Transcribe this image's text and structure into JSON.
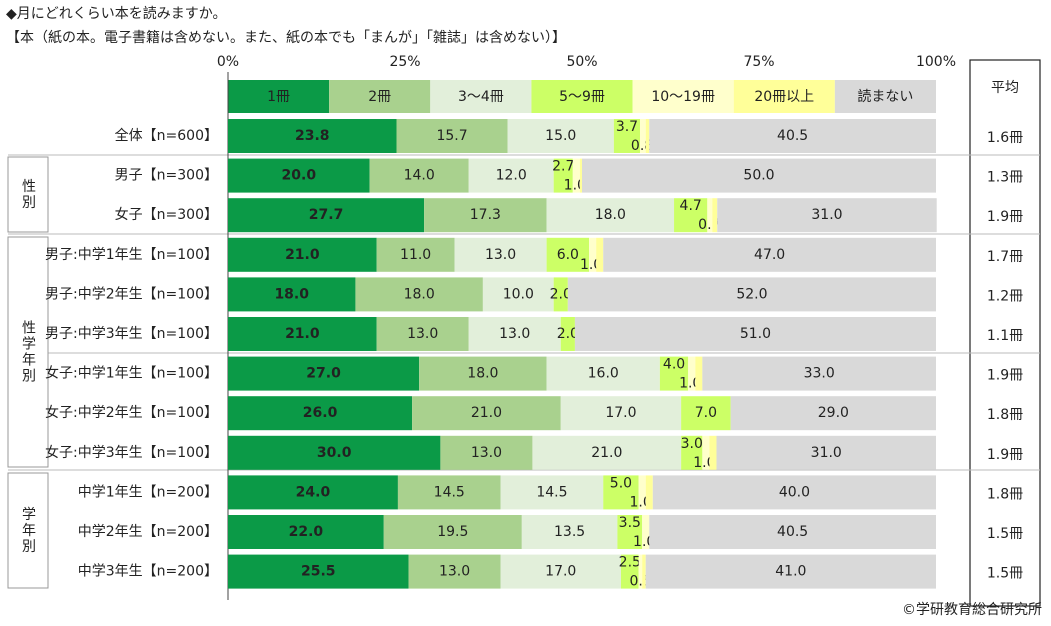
{
  "chart_data": {
    "type": "stacked-bar-horizontal",
    "title": "◆月にどれくらい本を読みますか。",
    "subtitle": "【本（紙の本。電子書籍は含めない。また、紙の本でも「まんが」「雑誌」は含めない）】",
    "source": "©学研教育総合研究所",
    "categories": [
      "全体【n=600】",
      "男子【n=300】",
      "女子【n=300】",
      "男子:中学1年生【n=100】",
      "男子:中学2年生【n=100】",
      "男子:中学3年生【n=100】",
      "女子:中学1年生【n=100】",
      "女子:中学2年生【n=100】",
      "女子:中学3年生【n=100】",
      "中学1年生【n=200】",
      "中学2年生【n=200】",
      "中学3年生【n=200】"
    ],
    "groups": [
      {
        "label": "性別"
      },
      {
        "label": "性学年別"
      },
      {
        "label": "学年別"
      }
    ],
    "xlim": [
      0,
      100
    ],
    "xticks": [
      {
        "value": 0,
        "label": "0%"
      },
      {
        "value": 25,
        "label": "25%"
      },
      {
        "value": 50,
        "label": "50%"
      },
      {
        "value": 75,
        "label": "75%"
      },
      {
        "value": 100,
        "label": "100%"
      }
    ],
    "series": [
      {
        "name": "1冊",
        "color": "#0b9a47",
        "values": [
          23.8,
          20.0,
          27.7,
          21.0,
          18.0,
          21.0,
          27.0,
          26.0,
          30.0,
          24.0,
          22.0,
          25.5
        ],
        "value_labels": [
          "23.8",
          "20.0",
          "27.7",
          "21.0",
          "18.0",
          "21.0",
          "27.0",
          "26.0",
          "30.0",
          "24.0",
          "22.0",
          "25.5"
        ]
      },
      {
        "name": "2冊",
        "color": "#a9d18e",
        "values": [
          15.7,
          14.0,
          17.3,
          11.0,
          18.0,
          13.0,
          18.0,
          21.0,
          13.0,
          14.5,
          19.5,
          13.0
        ],
        "value_labels": [
          "15.7",
          "14.0",
          "17.3",
          "11.0",
          "18.0",
          "13.0",
          "18.0",
          "21.0",
          "13.0",
          "14.5",
          "19.5",
          "13.0"
        ]
      },
      {
        "name": "3～4冊",
        "color": "#e2efda",
        "values": [
          15.0,
          12.0,
          18.0,
          13.0,
          10.0,
          13.0,
          16.0,
          17.0,
          21.0,
          14.5,
          13.5,
          17.0
        ],
        "value_labels": [
          "15.0",
          "12.0",
          "18.0",
          "13.0",
          "10.0",
          "13.0",
          "16.0",
          "17.0",
          "21.0",
          "14.5",
          "13.5",
          "17.0"
        ]
      },
      {
        "name": "5～9冊",
        "color": "#ccff66",
        "values": [
          3.7,
          2.7,
          4.7,
          6.0,
          2.0,
          2.0,
          4.0,
          7.0,
          3.0,
          5.0,
          3.5,
          2.5
        ],
        "value_labels": [
          "3.7",
          "2.7",
          "4.7",
          "6.0",
          "2.0",
          "2.0",
          "4.0",
          "7.0",
          "3.0",
          "5.0",
          "3.5",
          "2.5"
        ]
      },
      {
        "name": "10～19冊",
        "color": "#ffffcc",
        "values": [
          0.8,
          1.0,
          0.7,
          1.0,
          null,
          null,
          1.0,
          null,
          1.0,
          1.0,
          1.0,
          0.5
        ],
        "value_labels": [
          "0.8",
          "1.0",
          "0.7",
          "1.0",
          null,
          null,
          "1.0",
          null,
          "1.0",
          "1.0",
          "1.0",
          "0.5"
        ]
      },
      {
        "name": "20冊以上",
        "color": "#ffff99",
        "values": [
          0.5,
          0.3,
          0.7,
          1.0,
          null,
          null,
          1.0,
          null,
          1.0,
          1.0,
          null,
          0.5
        ],
        "value_labels": [
          "0.5",
          "0.3",
          "0.7",
          "1.0",
          null,
          null,
          "1.0",
          null,
          "1.0",
          "1.0",
          null,
          "0.5"
        ]
      },
      {
        "name": "読まない",
        "color": "#d9d9d9",
        "values": [
          40.5,
          50.0,
          31.0,
          47.0,
          52.0,
          51.0,
          33.0,
          29.0,
          31.0,
          40.0,
          40.5,
          41.0
        ],
        "value_labels": [
          "40.5",
          "50.0",
          "31.0",
          "47.0",
          "52.0",
          "51.0",
          "33.0",
          "29.0",
          "31.0",
          "40.0",
          "40.5",
          "41.0"
        ]
      }
    ],
    "average": {
      "name": "平均",
      "values": [
        1.6,
        1.3,
        1.9,
        1.7,
        1.2,
        1.1,
        1.9,
        1.8,
        1.9,
        1.8,
        1.5,
        1.5
      ],
      "value_labels": [
        "1.6冊",
        "1.3冊",
        "1.9冊",
        "1.7冊",
        "1.2冊",
        "1.1冊",
        "1.9冊",
        "1.8冊",
        "1.9冊",
        "1.8冊",
        "1.5冊",
        "1.5冊"
      ]
    }
  }
}
